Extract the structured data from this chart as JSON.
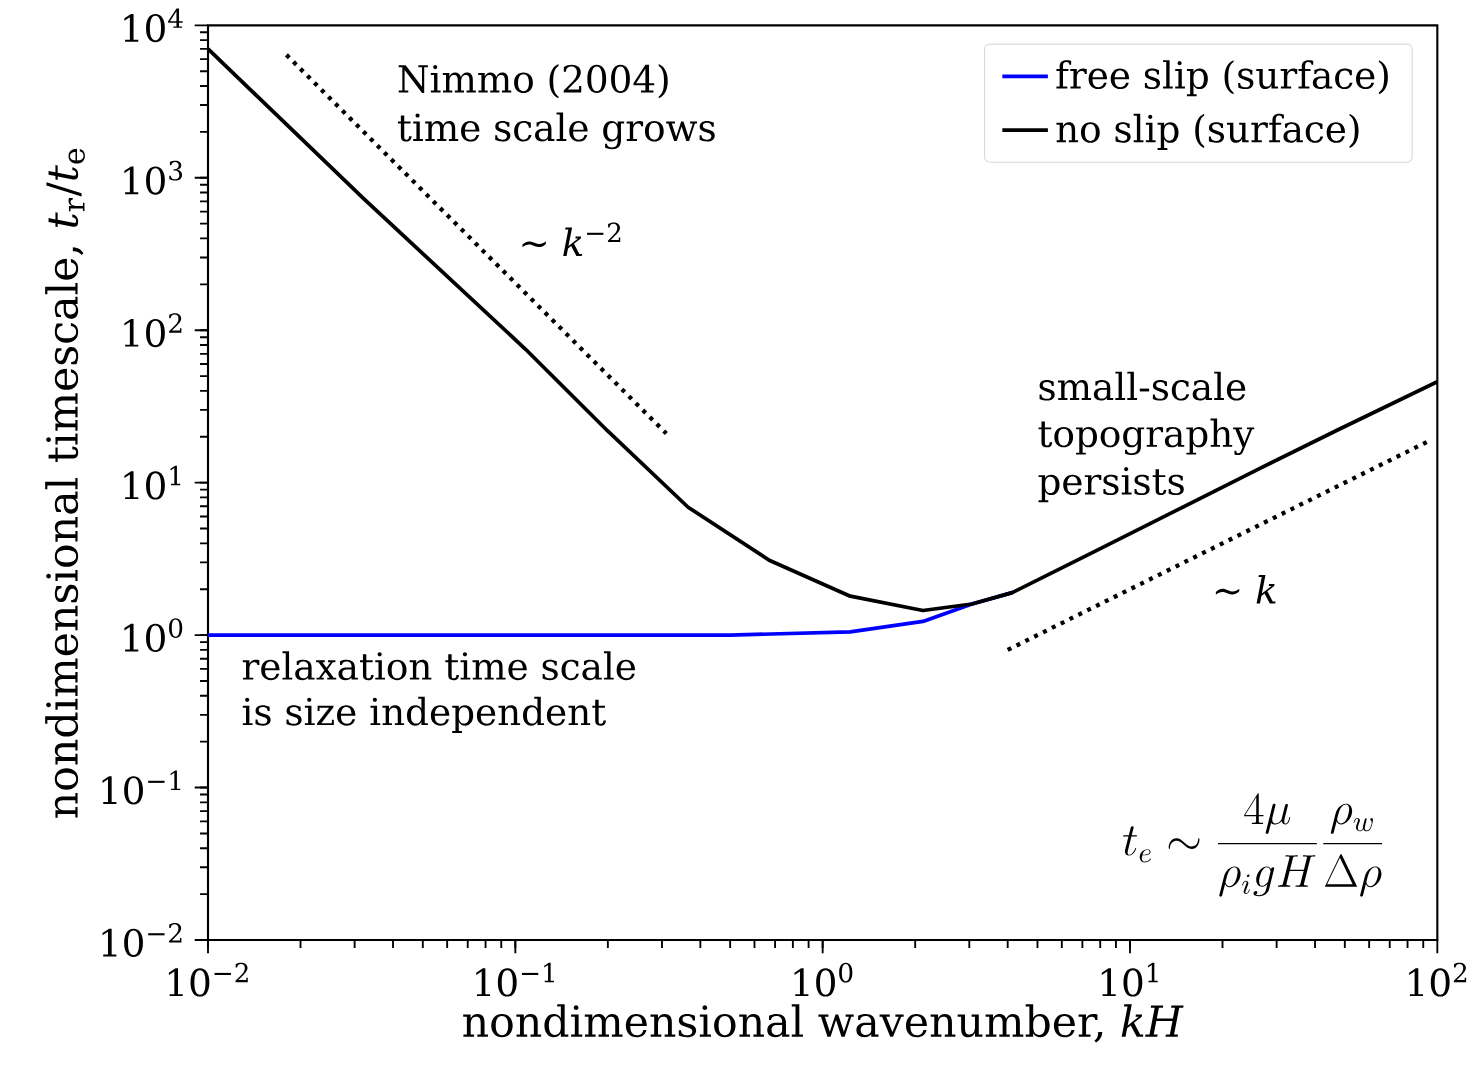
{
  "chart_data": {
    "type": "line",
    "xlabel": "nondimensional wavenumber, *kH*",
    "ylabel": "nondimensional timescale, *t*$_{r}$/*t*$_{e}$",
    "log": "xy",
    "grid": false,
    "legend": "top right",
    "line_style": "solid",
    "marker": "none",
    "xlim": [
      0.01,
      100
    ],
    "ylim": [
      0.01,
      10000
    ],
    "xticks": [
      {
        "value": 0.01,
        "label": "10$^{−2}$"
      },
      {
        "value": 0.1,
        "label": "10$^{−1}$"
      },
      {
        "value": 1,
        "label": "10$^{0}$"
      },
      {
        "value": 10,
        "label": "10$^{1}$"
      },
      {
        "value": 100,
        "label": "10$^{2}$"
      }
    ],
    "yticks": [
      {
        "value": 0.01,
        "label": "10$^{−2}$"
      },
      {
        "value": 0.1,
        "label": "10$^{−1}$"
      },
      {
        "value": 1,
        "label": "10$^{0}$"
      },
      {
        "value": 10,
        "label": "10$^{1}$"
      },
      {
        "value": 100,
        "label": "10$^{2}$"
      },
      {
        "value": 1000,
        "label": "10$^{3}$"
      },
      {
        "value": 10000,
        "label": "10$^{4}$"
      }
    ],
    "series": [
      {
        "name": "free slip (surface)",
        "color": "#0000ff",
        "x": [
          0.01,
          0.1,
          0.5,
          1.23,
          2.12,
          3.06,
          4.14
        ],
        "values": [
          1,
          1,
          1,
          1.05,
          1.23,
          1.6,
          1.9
        ]
      },
      {
        "name": "no slip (surface)",
        "color": "#000000",
        "x": [
          0.01,
          0.0321,
          0.108,
          0.199,
          0.365,
          0.67,
          1.23,
          2.12,
          3.06,
          4.14,
          7.6,
          14,
          25.6,
          47,
          100
        ],
        "values": [
          7000,
          730,
          75,
          22,
          6.9,
          3.1,
          1.8,
          1.45,
          1.6,
          1.9,
          3.5,
          6.5,
          12,
          22,
          46
        ]
      },
      {
        "type": "line",
        "line_style": "dotted",
        "color": "#000000",
        "x": [
          0.018,
          0.31
        ],
        "values": [
          6400,
          21
        ]
      },
      {
        "type": "line",
        "line_style": "dotted",
        "color": "#000000",
        "x": [
          4,
          95
        ],
        "values": [
          0.8,
          19
        ]
      }
    ],
    "annotations": [
      "Nimmo (2004)",
      "time scale grows",
      "∼ *k*$^{−2}$",
      "small-scale",
      "topography",
      "persists",
      "∼ *k*",
      "relaxation time scale",
      "is size independent",
      "t_e \\sim \\frac{4\\mu}{\\rho_i g H}\\frac{\\rho_w}{\\Delta\\rho}"
    ]
  }
}
